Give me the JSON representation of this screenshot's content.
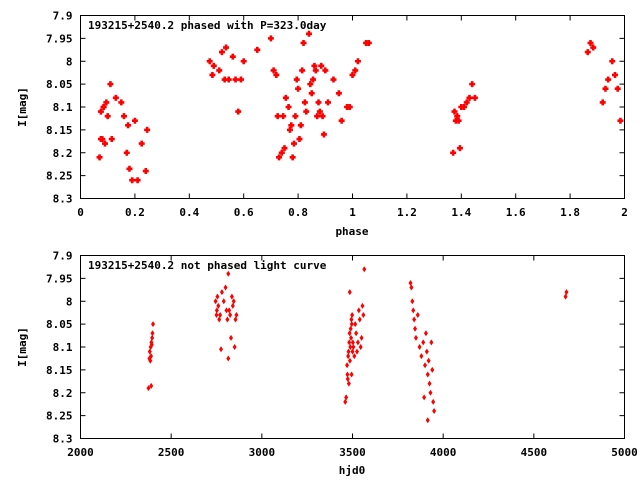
{
  "chart_data": [
    {
      "type": "scatter",
      "title": "193215+2540.2 phased with P=323.0day",
      "xlabel": "phase",
      "ylabel": "I[mag]",
      "xlim": [
        0,
        2
      ],
      "ylim": [
        7.9,
        8.3
      ],
      "y_inverted": true,
      "grid": false,
      "x_ticks": [
        "0",
        "0.2",
        "0.4",
        "0.6",
        "0.8",
        "1",
        "1.2",
        "1.4",
        "1.6",
        "1.8",
        "2"
      ],
      "x_tick_values": [
        0,
        0.2,
        0.4,
        0.6,
        0.8,
        1.0,
        1.2,
        1.4,
        1.6,
        1.8,
        2.0
      ],
      "y_ticks": [
        "7.9",
        "7.95",
        "8",
        "8.05",
        "8.1",
        "8.15",
        "8.2",
        "8.25",
        "8.3"
      ],
      "y_tick_values": [
        7.9,
        7.95,
        8.0,
        8.05,
        8.1,
        8.15,
        8.2,
        8.25,
        8.3
      ],
      "marker_color": "#ff0000",
      "x": [
        0.07,
        0.075,
        0.08,
        0.085,
        0.09,
        0.095,
        0.075,
        0.085,
        0.1,
        0.11,
        0.115,
        0.13,
        0.15,
        0.16,
        0.17,
        0.175,
        0.18,
        0.19,
        0.2,
        0.21,
        0.225,
        0.24,
        0.245,
        0.475,
        0.485,
        0.49,
        0.51,
        0.52,
        0.53,
        0.535,
        0.545,
        0.56,
        0.57,
        0.58,
        0.59,
        0.6,
        0.65,
        0.7,
        0.71,
        0.72,
        0.725,
        0.73,
        0.74,
        0.745,
        0.75,
        0.755,
        0.765,
        0.77,
        0.775,
        0.78,
        0.785,
        0.79,
        0.795,
        0.8,
        0.805,
        0.81,
        0.815,
        0.82,
        0.825,
        0.83,
        0.84,
        0.845,
        0.85,
        0.855,
        0.86,
        0.865,
        0.87,
        0.875,
        0.88,
        0.885,
        0.89,
        0.895,
        0.9,
        0.91,
        0.93,
        0.95,
        0.96,
        0.98,
        0.99,
        1.0,
        1.01,
        1.02,
        1.05,
        1.06,
        1.37,
        1.375,
        1.38,
        1.385,
        1.39,
        1.395,
        1.4,
        1.41,
        1.42,
        1.43,
        1.44,
        1.45,
        1.865,
        1.875,
        1.885,
        1.92,
        1.93,
        1.94,
        1.955,
        1.965,
        1.975,
        1.985
      ],
      "y": [
        8.21,
        8.11,
        8.17,
        8.1,
        8.18,
        8.09,
        8.17,
        8.1,
        8.12,
        8.05,
        8.17,
        8.08,
        8.09,
        8.12,
        8.2,
        8.14,
        8.235,
        8.26,
        8.13,
        8.26,
        8.18,
        8.24,
        8.15,
        8.0,
        8.03,
        8.01,
        8.02,
        7.98,
        8.04,
        7.97,
        8.04,
        7.99,
        8.04,
        8.11,
        8.04,
        8.0,
        7.975,
        7.95,
        8.02,
        8.03,
        8.12,
        8.21,
        8.2,
        8.12,
        8.19,
        8.08,
        8.1,
        8.15,
        8.14,
        8.21,
        8.18,
        8.12,
        8.04,
        8.06,
        8.17,
        8.14,
        8.02,
        7.96,
        8.09,
        8.11,
        7.94,
        8.05,
        8.07,
        8.04,
        8.01,
        8.02,
        8.12,
        8.09,
        8.11,
        8.01,
        8.12,
        8.16,
        8.02,
        8.09,
        8.04,
        8.07,
        8.13,
        8.1,
        8.1,
        8.03,
        8.02,
        8.0,
        7.96,
        7.96,
        8.2,
        8.11,
        8.13,
        8.12,
        8.13,
        8.19,
        8.1,
        8.1,
        8.09,
        8.08,
        8.05,
        8.08,
        7.98,
        7.96,
        7.97,
        8.09,
        8.06,
        8.04,
        8.0,
        8.03,
        8.06,
        8.13
      ]
    },
    {
      "type": "scatter",
      "title": "193215+2540.2 not phased light curve",
      "xlabel": "hjd0",
      "ylabel": "I[mag]",
      "xlim": [
        2000,
        5000
      ],
      "ylim": [
        7.9,
        8.3
      ],
      "y_inverted": true,
      "grid": false,
      "x_ticks": [
        "2000",
        "2500",
        "3000",
        "3500",
        "4000",
        "4500",
        "5000"
      ],
      "x_tick_values": [
        2000,
        2500,
        3000,
        3500,
        4000,
        4500,
        5000
      ],
      "y_ticks": [
        "7.9",
        "7.95",
        "8",
        "8.05",
        "8.1",
        "8.15",
        "8.2",
        "8.25",
        "8.3"
      ],
      "y_tick_values": [
        7.9,
        7.95,
        8.0,
        8.05,
        8.1,
        8.15,
        8.2,
        8.25,
        8.3
      ],
      "marker_color": "#ff0000",
      "x": [
        2375,
        2380,
        2382,
        2385,
        2387,
        2389,
        2391,
        2393,
        2395,
        2397,
        2400,
        2390,
        2745,
        2750,
        2752,
        2755,
        2760,
        2765,
        2770,
        2780,
        2790,
        2800,
        2805,
        2810,
        2815,
        2820,
        2825,
        2830,
        2835,
        2840,
        2845,
        2850,
        2855,
        2860,
        2775,
        2815,
        3460,
        3465,
        3470,
        3472,
        3474,
        3476,
        3478,
        3480,
        3482,
        3484,
        3486,
        3488,
        3490,
        3492,
        3494,
        3496,
        3498,
        3500,
        3502,
        3505,
        3510,
        3515,
        3520,
        3525,
        3530,
        3535,
        3540,
        3545,
        3550,
        3555,
        3560,
        3565,
        3485,
        3495,
        3820,
        3825,
        3830,
        3835,
        3840,
        3845,
        3850,
        3860,
        3870,
        3880,
        3890,
        3900,
        3905,
        3910,
        3915,
        3920,
        3925,
        3930,
        3935,
        3940,
        3945,
        3950,
        3895,
        3915,
        4675,
        4680
      ],
      "y": [
        8.19,
        8.125,
        8.11,
        8.13,
        8.1,
        8.12,
        8.09,
        8.095,
        8.08,
        8.07,
        8.05,
        8.185,
        8.0,
        8.03,
        8.02,
        7.99,
        8.01,
        8.04,
        8.03,
        7.98,
        8.0,
        7.97,
        8.02,
        8.04,
        7.94,
        8.02,
        8.03,
        8.08,
        7.99,
        8.01,
        8.0,
        8.1,
        8.04,
        8.03,
        8.105,
        8.125,
        8.22,
        8.21,
        8.14,
        8.16,
        8.17,
        8.12,
        8.11,
        8.18,
        8.09,
        8.07,
        8.13,
        8.1,
        8.06,
        8.08,
        8.04,
        8.05,
        8.03,
        8.11,
        8.09,
        8.1,
        8.12,
        8.05,
        8.07,
        8.11,
        8.09,
        8.02,
        8.04,
        8.1,
        8.08,
        8.01,
        8.03,
        7.93,
        7.98,
        8.16,
        7.96,
        7.97,
        8.0,
        8.02,
        8.04,
        8.06,
        8.08,
        8.03,
        8.1,
        8.12,
        8.09,
        8.14,
        8.07,
        8.11,
        8.16,
        8.13,
        8.18,
        8.2,
        8.09,
        8.15,
        8.22,
        8.24,
        8.21,
        8.26,
        7.99,
        7.98
      ]
    }
  ]
}
